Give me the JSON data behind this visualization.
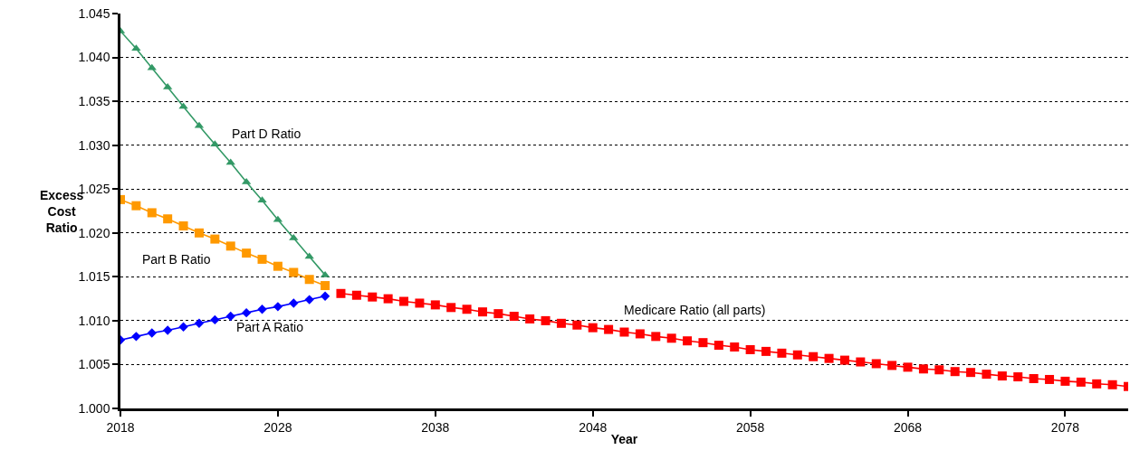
{
  "chart_data": {
    "type": "line",
    "xlabel": "Year",
    "ylabel": "Excess Cost Ratio",
    "xlim": [
      2018,
      2082
    ],
    "xticks": [
      2018,
      2028,
      2038,
      2048,
      2058,
      2068,
      2078
    ],
    "ylim": [
      1.0,
      1.045
    ],
    "yticks": [
      {
        "value": 1.0,
        "label": "1.000"
      },
      {
        "value": 1.005,
        "label": "1.005"
      },
      {
        "value": 1.01,
        "label": "1.010"
      },
      {
        "value": 1.015,
        "label": "1.015"
      },
      {
        "value": 1.02,
        "label": "1.020"
      },
      {
        "value": 1.025,
        "label": "1.025"
      },
      {
        "value": 1.03,
        "label": "1.030"
      },
      {
        "value": 1.035,
        "label": "1.035"
      },
      {
        "value": 1.04,
        "label": "1.040"
      },
      {
        "value": 1.045,
        "label": "1.045"
      }
    ],
    "grid": "y",
    "line_style": "solid",
    "series": [
      {
        "color": "#339966",
        "marker": "triangle",
        "x": [
          2018,
          2019,
          2020,
          2021,
          2022,
          2023,
          2024,
          2025,
          2026,
          2027,
          2028,
          2029,
          2030,
          2031
        ],
        "values": [
          1.043,
          1.041,
          1.0388,
          1.0366,
          1.0344,
          1.0322,
          1.0301,
          1.028,
          1.0258,
          1.0237,
          1.0215,
          1.0194,
          1.0173,
          1.0152
        ]
      },
      {
        "color": "#ff9900",
        "marker": "square",
        "x": [
          2018,
          2019,
          2020,
          2021,
          2022,
          2023,
          2024,
          2025,
          2026,
          2027,
          2028,
          2029,
          2030,
          2031
        ],
        "values": [
          1.0238,
          1.0231,
          1.0223,
          1.0216,
          1.0208,
          1.02,
          1.0193,
          1.0185,
          1.0177,
          1.017,
          1.0162,
          1.0155,
          1.0147,
          1.014
        ]
      },
      {
        "color": "#0000ff",
        "marker": "diamond",
        "x": [
          2018,
          2019,
          2020,
          2021,
          2022,
          2023,
          2024,
          2025,
          2026,
          2027,
          2028,
          2029,
          2030,
          2031
        ],
        "values": [
          1.0078,
          1.0082,
          1.0086,
          1.0089,
          1.0093,
          1.0097,
          1.0101,
          1.0105,
          1.0109,
          1.0113,
          1.0116,
          1.012,
          1.0124,
          1.0128
        ]
      },
      {
        "color": "#ff0000",
        "marker": "square",
        "x": [
          2032,
          2033,
          2034,
          2035,
          2036,
          2037,
          2038,
          2039,
          2040,
          2041,
          2042,
          2043,
          2044,
          2045,
          2046,
          2047,
          2048,
          2049,
          2050,
          2051,
          2052,
          2053,
          2054,
          2055,
          2056,
          2057,
          2058,
          2059,
          2060,
          2061,
          2062,
          2063,
          2064,
          2065,
          2066,
          2067,
          2068,
          2069,
          2070,
          2071,
          2072,
          2073,
          2074,
          2075,
          2076,
          2077,
          2078,
          2079,
          2080,
          2081,
          2082
        ],
        "values": [
          1.0131,
          1.0129,
          1.0127,
          1.0125,
          1.0122,
          1.012,
          1.0118,
          1.0115,
          1.0113,
          1.011,
          1.0108,
          1.0105,
          1.0102,
          1.01,
          1.0097,
          1.0095,
          1.0092,
          1.009,
          1.0087,
          1.0085,
          1.0082,
          1.008,
          1.0077,
          1.0075,
          1.0072,
          1.007,
          1.0067,
          1.0065,
          1.0063,
          1.0061,
          1.0059,
          1.0057,
          1.0055,
          1.0053,
          1.0051,
          1.0049,
          1.0047,
          1.0045,
          1.0044,
          1.0042,
          1.0041,
          1.0039,
          1.0037,
          1.0036,
          1.0034,
          1.0033,
          1.0031,
          1.003,
          1.0028,
          1.0027,
          1.0025
        ]
      }
    ],
    "annotations": [
      "Part D Ratio",
      "Part B Ratio",
      "Part A Ratio",
      "Medicare Ratio (all parts)"
    ]
  }
}
